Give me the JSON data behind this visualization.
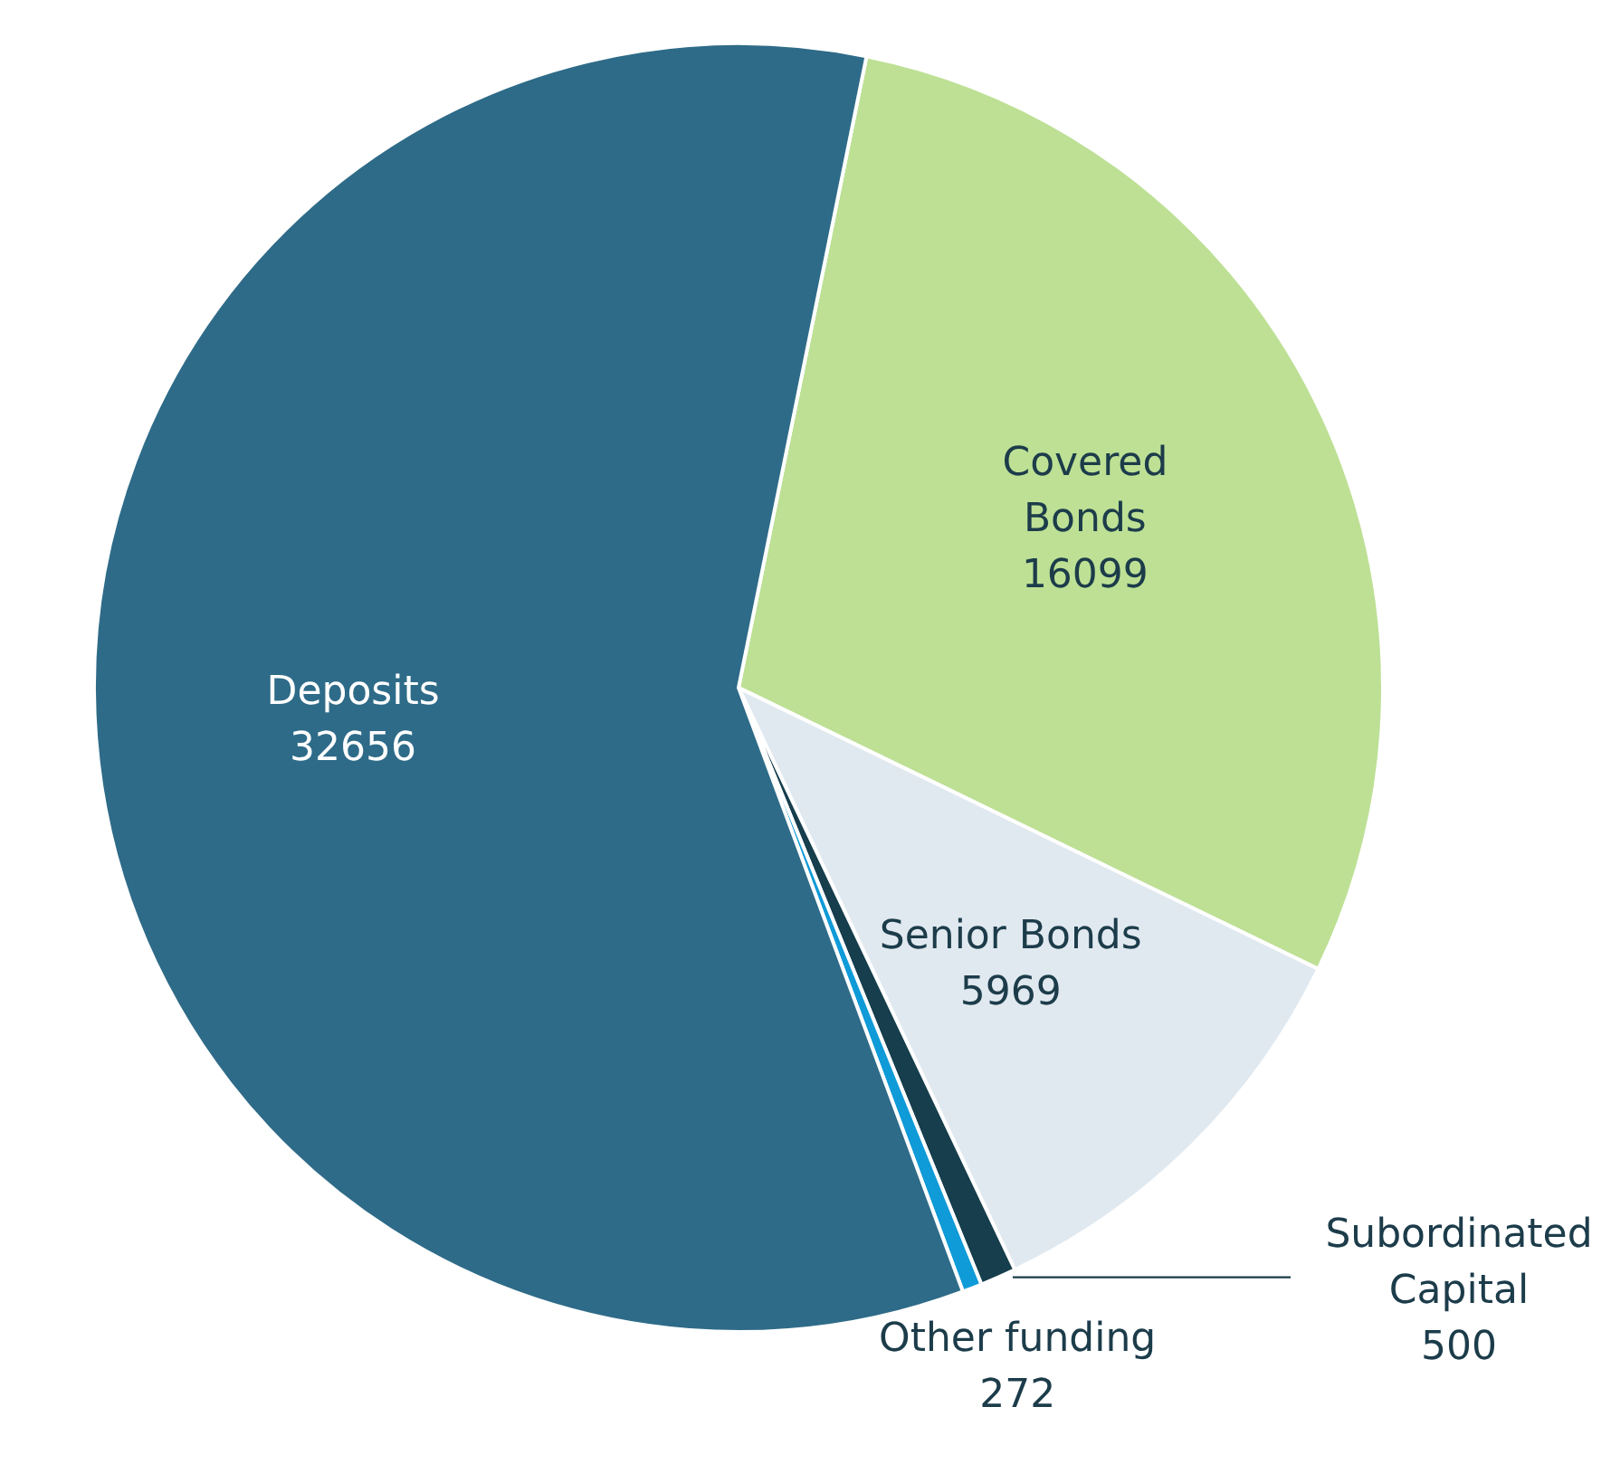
{
  "chart_data": {
    "type": "pie",
    "categories": [
      "Covered Bonds",
      "Senior Bonds",
      "Subordinated Capital",
      "Other funding",
      "Deposits"
    ],
    "values": [
      16099,
      5969,
      500,
      272,
      32656
    ],
    "colors": [
      "#bde095",
      "#e1e9f0",
      "#163e4d",
      "#0f9ad8",
      "#2e6b88"
    ],
    "data_labels": true
  }
}
